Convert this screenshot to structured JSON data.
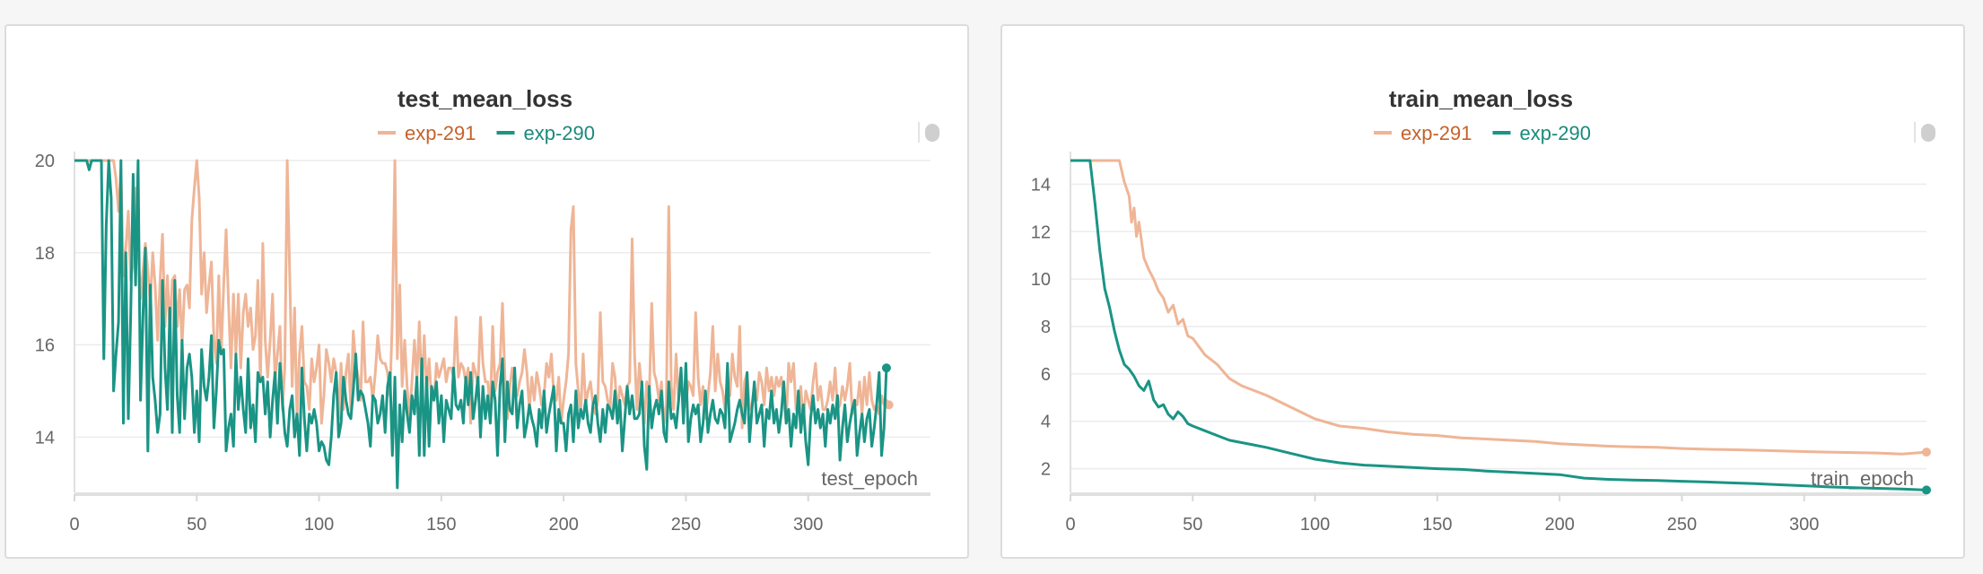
{
  "colors": {
    "exp291": "#efb596",
    "exp291_text": "#c6622a",
    "exp290": "#1a9485",
    "exp290_text": "#1a8a7b"
  },
  "chart_data": [
    {
      "type": "line",
      "title": "test_mean_loss",
      "xlabel": "test_epoch",
      "ylabel": "",
      "xlim": [
        0,
        350
      ],
      "ylim": [
        12.8,
        20
      ],
      "x_ticks": [
        0,
        50,
        100,
        150,
        200,
        250,
        300
      ],
      "y_ticks": [
        14,
        16,
        18,
        20
      ],
      "legend": "top-center",
      "grid": true,
      "series": [
        {
          "name": "exp-291",
          "color_key": "exp291",
          "x_start": 0,
          "x_step": 1,
          "values": [
            20,
            20,
            20,
            20,
            20,
            20,
            20,
            20,
            20,
            20,
            20,
            20,
            20,
            20,
            20,
            20,
            20,
            19.6,
            18.9,
            19.8,
            17.5,
            18.1,
            18.9,
            17.4,
            17.8,
            19.4,
            18.1,
            17,
            17.6,
            18.2,
            17.6,
            16.9,
            18,
            17.3,
            16.1,
            17.4,
            18.4,
            16.4,
            17.5,
            16.3,
            17.4,
            17.5,
            16.4,
            17.2,
            16,
            17.2,
            17.3,
            16.8,
            18.7,
            19.4,
            20,
            19.2,
            17.1,
            18,
            16.7,
            17.3,
            17.8,
            16.1,
            15.6,
            17.5,
            15.8,
            17.3,
            18.5,
            16.9,
            15.5,
            17.1,
            15.8,
            17.1,
            15.5,
            16.7,
            17.1,
            16.4,
            16.8,
            15.9,
            16.2,
            17.4,
            15.2,
            18.2,
            16.1,
            15.3,
            16.1,
            17.1,
            15.2,
            15.8,
            16.4,
            14.6,
            15.5,
            20,
            17.5,
            15.1,
            16.8,
            14.4,
            15.8,
            16.4,
            15.2,
            15.1,
            14.6,
            15.7,
            15.2,
            15.5,
            16,
            14.3,
            14.9,
            15.9,
            15.6,
            15.2,
            15.7,
            15.4,
            14.4,
            15.6,
            14.6,
            15.4,
            15.8,
            14.6,
            16.3,
            15.6,
            15.3,
            14.8,
            16.5,
            15.2,
            15.2,
            15.3,
            14.8,
            15.4,
            16.2,
            15.7,
            15.6,
            15.6,
            15.4,
            14.9,
            16.6,
            20,
            15.7,
            17.3,
            15.1,
            16.1,
            15.1,
            14.4,
            15.2,
            16.1,
            15.2,
            16.5,
            15,
            16.2,
            15,
            15.7,
            14.8,
            14.8,
            15.6,
            15.3,
            15.5,
            15.7,
            15.2,
            15.5,
            15.5,
            15.3,
            16.6,
            15.3,
            15.6,
            15.5,
            15.2,
            15.5,
            14.3,
            15.6,
            15.4,
            15.1,
            16.6,
            15.6,
            15.2,
            15.2,
            14.6,
            16.4,
            15,
            15.4,
            15.6,
            16.9,
            15.3,
            14.4,
            15.1,
            15.5,
            15.1,
            14.9,
            15.2,
            15.4,
            15.9,
            15.4,
            14.6,
            15.3,
            14.8,
            15.4,
            15.1,
            14.7,
            14.9,
            15.6,
            15.3,
            15.8,
            14.9,
            14.8,
            15.3,
            14.3,
            14.8,
            15.2,
            15.8,
            18.5,
            19,
            15.6,
            15,
            14.5,
            15.8,
            14.7,
            15,
            15.2,
            14.7,
            14.5,
            14.8,
            16.7,
            15.2,
            15.1,
            14.8,
            14.6,
            15.6,
            15.3,
            14.5,
            15.1,
            14.9,
            14.7,
            15.1,
            15.2,
            18.3,
            15.8,
            14.6,
            15.6,
            15,
            14.3,
            15.2,
            14.8,
            16.9,
            15.4,
            15.2,
            14.8,
            15.2,
            14.3,
            14.7,
            19,
            15.1,
            14.6,
            15.8,
            14.8,
            15.4,
            14.6,
            14.7,
            15.2,
            15.1,
            14.9,
            16.7,
            15.3,
            14.7,
            15.1,
            14.4,
            14.9,
            15.4,
            16.4,
            15,
            15.8,
            15.2,
            15,
            14.6,
            15.3,
            14.9,
            15.8,
            15.3,
            15.1,
            16.4,
            14.2,
            15.2,
            15.4,
            14.6,
            14.7,
            15.1,
            14.8,
            15.4,
            15.2,
            14.7,
            15.5,
            15,
            15.3,
            14.9,
            15.3,
            15.1,
            15.3,
            14.8,
            14.3,
            15.6,
            15.2,
            15.6,
            14.6,
            14.8,
            15.1,
            14.3,
            15,
            14.8,
            14.6,
            15.2,
            15.6,
            14.8,
            15.1,
            14.6,
            14.6,
            14.8,
            15.2,
            14.8,
            15.5,
            14.6,
            14.7,
            15.1,
            14.8,
            15.1,
            15.6,
            14.5,
            14.8,
            14.7,
            15.2,
            14.5,
            15.3,
            14.7,
            15.4,
            14.8,
            14.6,
            14.7,
            14.5,
            14.9,
            14.7,
            14.8,
            14.7
          ]
        },
        {
          "name": "exp-290",
          "color_key": "exp290",
          "x_start": 0,
          "x_step": 1,
          "values": [
            20,
            20,
            20,
            20,
            20,
            20,
            19.8,
            20,
            20,
            20,
            20,
            20,
            15.7,
            18.6,
            20,
            19.2,
            15,
            15.8,
            16.5,
            20,
            14.3,
            18,
            14.4,
            16.7,
            19.7,
            17.3,
            20,
            14.8,
            16.6,
            18.1,
            13.7,
            17.3,
            15.3,
            14.8,
            14.1,
            14.5,
            17.4,
            15.5,
            14.6,
            16.8,
            14.1,
            17.4,
            14.9,
            14.1,
            16.1,
            14.4,
            15.5,
            15.8,
            15.3,
            14.1,
            15,
            13.9,
            15.9,
            15.1,
            14.8,
            15.3,
            16.2,
            14.2,
            15,
            16.1,
            15.8,
            15.9,
            13.7,
            14.2,
            14.5,
            13.8,
            15.8,
            14.6,
            15.3,
            14.6,
            14.1,
            15.7,
            14.2,
            14.7,
            13.9,
            15.4,
            15.2,
            15.3,
            14.5,
            15.2,
            14,
            14.8,
            15.4,
            14.3,
            15.6,
            14.8,
            14.1,
            13.8,
            14.6,
            14.9,
            14,
            14.5,
            13.6,
            15.5,
            14.4,
            13.7,
            14.5,
            14.3,
            14.6,
            14.3,
            13.7,
            13.9,
            13.8,
            13.5,
            13.4,
            14,
            14.9,
            15.4,
            14,
            14.3,
            15.3,
            14.8,
            14.5,
            14.4,
            15,
            15.8,
            14.8,
            15,
            14.9,
            14.6,
            14.3,
            13.8,
            14.9,
            14.8,
            14.3,
            14.5,
            14.9,
            14.1,
            15.1,
            15.4,
            13.6,
            15.3,
            12.9,
            14.7,
            13.9,
            15,
            14.5,
            14.1,
            14.9,
            14.5,
            15.3,
            13.6,
            15.7,
            13.6,
            15.3,
            13.8,
            15.1,
            14.8,
            15.2,
            14.3,
            14.9,
            13.9,
            14.8,
            14.6,
            14.4,
            15.5,
            14.7,
            14.6,
            14.8,
            14.3,
            15.3,
            14.7,
            15.4,
            14.4,
            14.8,
            15.3,
            14,
            15.1,
            14.4,
            14.9,
            14.3,
            15.2,
            14.8,
            13.6,
            15.1,
            15.7,
            13.9,
            15.2,
            14.6,
            14.5,
            15.5,
            14.2,
            14.7,
            15,
            14,
            14.3,
            14.7,
            14.4,
            14.2,
            13.8,
            14.6,
            14.2,
            15,
            14.1,
            14.5,
            14.8,
            15.1,
            13.7,
            14.6,
            14.3,
            14.3,
            13.7,
            14.5,
            14.7,
            13.9,
            15,
            14.2,
            14.6,
            14.4,
            14.8,
            14.3,
            14.1,
            14.7,
            14.9,
            14.3,
            13.9,
            14.6,
            14.1,
            14.7,
            14.6,
            14.4,
            15,
            14.3,
            14.8,
            13.7,
            14.4,
            15.1,
            14.5,
            14.9,
            14.4,
            14.4,
            14.5,
            15.2,
            13.8,
            13.3,
            15.1,
            14.2,
            14.6,
            14.8,
            14.5,
            15,
            14.1,
            13.9,
            15.2,
            14.4,
            14.5,
            14.2,
            14.8,
            15.5,
            14.3,
            15.6,
            13.9,
            14.4,
            14.7,
            14.5,
            14.7,
            13.9,
            14.3,
            15,
            14.1,
            14.5,
            14.8,
            14.4,
            14.3,
            14.6,
            14.5,
            14.2,
            15.6,
            13.9,
            14.1,
            14.3,
            14.6,
            14.8,
            14.5,
            14.3,
            15.4,
            13.9,
            14.6,
            15.2,
            14.3,
            14.5,
            14.7,
            13.8,
            14.6,
            14.4,
            15,
            14.3,
            14.6,
            14.1,
            14.5,
            15.2,
            14.3,
            14.6,
            13.8,
            14.5,
            14.2,
            15,
            14.1,
            14.7,
            13.9,
            13.4,
            14.4,
            14.9,
            14.3,
            14.6,
            14.2,
            14.5,
            13.8,
            14.6,
            14.3,
            14.7,
            14.4,
            14.9,
            13.5,
            14.2,
            14.7,
            13.9,
            14.3,
            14.6,
            14.8,
            13.6,
            14.1,
            14.5,
            13.9,
            14.4,
            14.6,
            13.8,
            14.2,
            14.7,
            15.4,
            13.6,
            14.2,
            15.5
          ]
        }
      ]
    },
    {
      "type": "line",
      "title": "train_mean_loss",
      "xlabel": "train_epoch",
      "ylabel": "",
      "xlim": [
        0,
        350
      ],
      "ylim": [
        1,
        15
      ],
      "x_ticks": [
        0,
        50,
        100,
        150,
        200,
        250,
        300
      ],
      "y_ticks": [
        2,
        4,
        6,
        8,
        10,
        12,
        14
      ],
      "legend": "top-center",
      "grid": true,
      "series": [
        {
          "name": "exp-291",
          "color_key": "exp291",
          "x_points": [
            0,
            5,
            10,
            15,
            18,
            20,
            22,
            24,
            25,
            26,
            27,
            28,
            30,
            32,
            34,
            36,
            38,
            40,
            42,
            44,
            46,
            48,
            50,
            55,
            60,
            65,
            70,
            80,
            90,
            100,
            110,
            120,
            130,
            140,
            150,
            160,
            170,
            180,
            190,
            200,
            210,
            220,
            230,
            240,
            250,
            260,
            270,
            280,
            290,
            300,
            310,
            320,
            330,
            340,
            350
          ],
          "values": [
            15,
            15,
            15,
            15,
            15,
            15,
            14.1,
            13.5,
            12.4,
            13,
            11.8,
            12.4,
            10.9,
            10.4,
            10,
            9.5,
            9.2,
            8.6,
            8.9,
            8.1,
            8.3,
            7.6,
            7.5,
            6.8,
            6.4,
            5.8,
            5.5,
            5.1,
            4.6,
            4.1,
            3.8,
            3.7,
            3.55,
            3.45,
            3.4,
            3.3,
            3.25,
            3.2,
            3.15,
            3.05,
            3,
            2.95,
            2.92,
            2.9,
            2.85,
            2.82,
            2.8,
            2.78,
            2.75,
            2.72,
            2.7,
            2.68,
            2.66,
            2.62,
            2.7
          ]
        },
        {
          "name": "exp-290",
          "color_key": "exp290",
          "x_points": [
            0,
            5,
            8,
            10,
            12,
            14,
            16,
            18,
            20,
            22,
            24,
            26,
            28,
            30,
            32,
            34,
            36,
            38,
            40,
            42,
            44,
            46,
            48,
            50,
            55,
            60,
            65,
            70,
            75,
            80,
            90,
            100,
            110,
            120,
            130,
            140,
            150,
            160,
            170,
            180,
            190,
            200,
            210,
            220,
            230,
            240,
            250,
            260,
            270,
            280,
            290,
            300,
            310,
            320,
            330,
            340,
            350
          ],
          "values": [
            15,
            15,
            15,
            13.2,
            11.2,
            9.6,
            8.8,
            7.8,
            7,
            6.4,
            6.2,
            5.9,
            5.5,
            5.3,
            5.7,
            4.9,
            4.6,
            4.7,
            4.3,
            4.1,
            4.4,
            4.2,
            3.9,
            3.8,
            3.6,
            3.4,
            3.2,
            3.1,
            3,
            2.9,
            2.65,
            2.4,
            2.25,
            2.15,
            2.1,
            2.05,
            2,
            1.97,
            1.9,
            1.85,
            1.8,
            1.75,
            1.6,
            1.55,
            1.52,
            1.5,
            1.47,
            1.44,
            1.4,
            1.37,
            1.32,
            1.28,
            1.23,
            1.2,
            1.17,
            1.14,
            1.1
          ]
        }
      ]
    }
  ]
}
